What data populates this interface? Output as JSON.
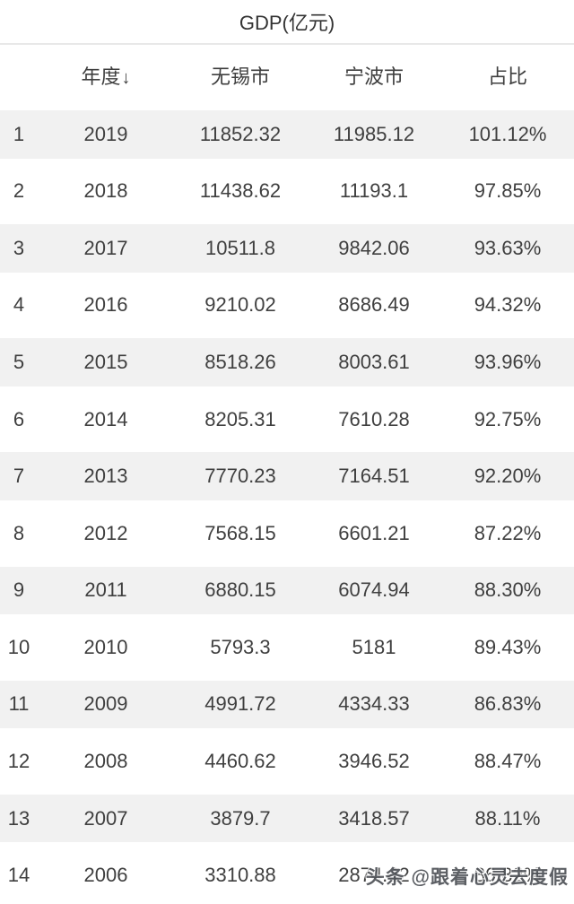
{
  "page_title": "GDP(亿元)",
  "watermark_text": "头条 @跟着心灵去度假",
  "header": {
    "index_label": "",
    "year_label": "年度",
    "sort_arrow": "↓",
    "wuxi_label": "无锡市",
    "ningbo_label": "宁波市",
    "ratio_label": "占比"
  },
  "colors": {
    "row_shade": "#f1f1f1",
    "divider": "#e8e8e8",
    "text": "#3f3f3f",
    "watermark": "#4f5257"
  },
  "chart_data": {
    "type": "table",
    "title": "GDP(亿元)",
    "columns": [
      "#",
      "年度",
      "无锡市",
      "宁波市",
      "占比"
    ],
    "sorted_column": "年度",
    "sort_direction": "descending",
    "rows": [
      [
        "1",
        "2019",
        "11852.32",
        "11985.12",
        "101.12%"
      ],
      [
        "2",
        "2018",
        "11438.62",
        "11193.1",
        "97.85%"
      ],
      [
        "3",
        "2017",
        "10511.8",
        "9842.06",
        "93.63%"
      ],
      [
        "4",
        "2016",
        "9210.02",
        "8686.49",
        "94.32%"
      ],
      [
        "5",
        "2015",
        "8518.26",
        "8003.61",
        "93.96%"
      ],
      [
        "6",
        "2014",
        "8205.31",
        "7610.28",
        "92.75%"
      ],
      [
        "7",
        "2013",
        "7770.23",
        "7164.51",
        "92.20%"
      ],
      [
        "8",
        "2012",
        "7568.15",
        "6601.21",
        "87.22%"
      ],
      [
        "9",
        "2011",
        "6880.15",
        "6074.94",
        "88.30%"
      ],
      [
        "10",
        "2010",
        "5793.3",
        "5181",
        "89.43%"
      ],
      [
        "11",
        "2009",
        "4991.72",
        "4334.33",
        "86.83%"
      ],
      [
        "12",
        "2008",
        "4460.62",
        "3946.52",
        "88.47%"
      ],
      [
        "13",
        "2007",
        "3879.7",
        "3418.57",
        "88.11%"
      ],
      [
        "14",
        "2006",
        "3310.88",
        "2874.42",
        "86.82%"
      ]
    ]
  }
}
